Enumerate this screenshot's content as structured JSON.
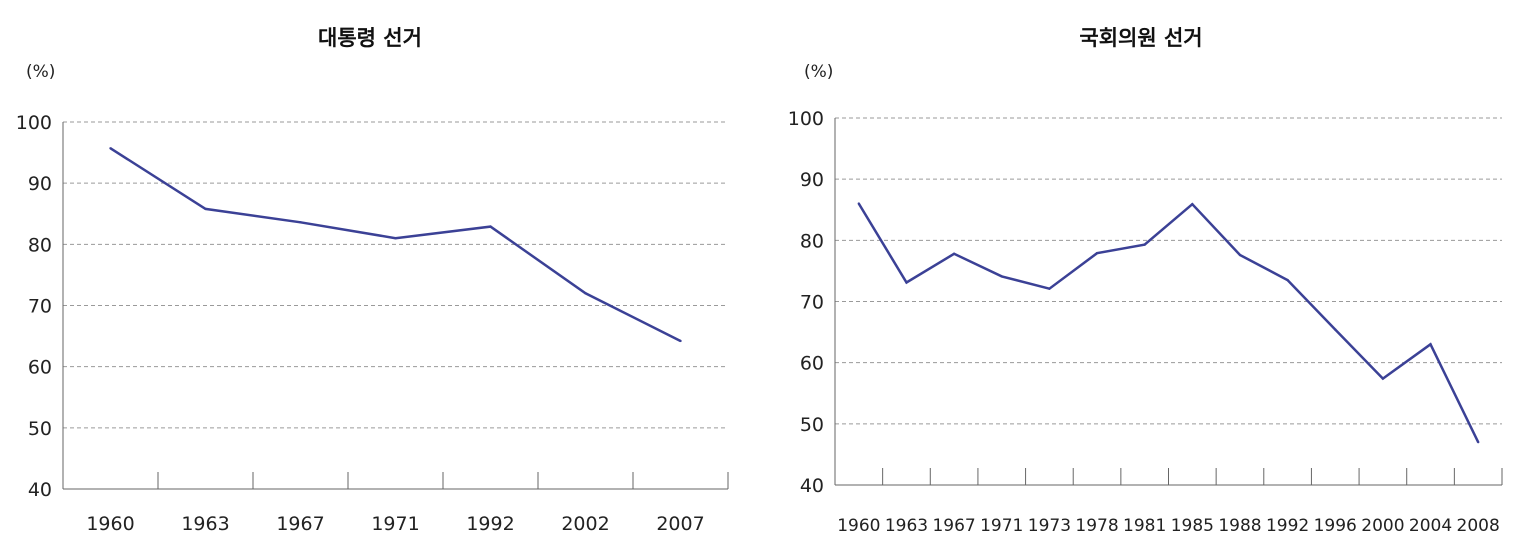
{
  "chart_data": [
    {
      "type": "line",
      "title": "대통령 선거",
      "unit": "(%)",
      "categories": [
        "1960",
        "1963",
        "1967",
        "1971",
        "1992",
        "2002",
        "2007"
      ],
      "series": [
        {
          "values": [
            95.7,
            85.8,
            83.6,
            81.0,
            82.9,
            72.0,
            64.2
          ]
        }
      ],
      "ylim": [
        40,
        100
      ],
      "yticks": [
        40,
        50,
        60,
        70,
        80,
        90,
        100
      ],
      "grid": true,
      "line_color": "#3b4196"
    },
    {
      "type": "line",
      "title": "국회의원 선거",
      "unit": "(%)",
      "categories": [
        "1960",
        "1963",
        "1967",
        "1971",
        "1973",
        "1978",
        "1981",
        "1985",
        "1988",
        "1992",
        "1996",
        "2000",
        "2004",
        "2008"
      ],
      "series": [
        {
          "values": [
            86.0,
            73.1,
            77.8,
            74.1,
            72.1,
            77.9,
            79.3,
            85.9,
            77.6,
            73.5,
            65.4,
            57.4,
            63.0,
            47.0
          ]
        }
      ],
      "ylim": [
        40,
        100
      ],
      "yticks": [
        40,
        50,
        60,
        70,
        80,
        90,
        100
      ],
      "grid": true,
      "line_color": "#3b4196"
    }
  ]
}
